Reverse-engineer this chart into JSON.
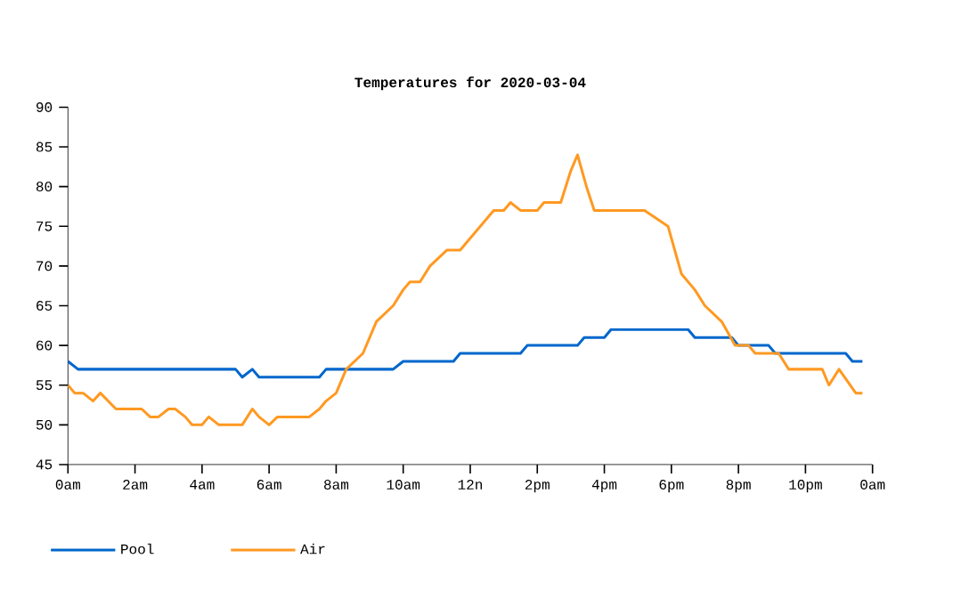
{
  "chart_data": {
    "type": "line",
    "title": "Temperatures for 2020-03-04",
    "xlim": [
      "2020-03-04T00:00",
      "2020-03-05T00:00"
    ],
    "ylim": [
      45,
      90
    ],
    "xticks": [
      {
        "value": "2020-03-04T00:00",
        "label": "0am"
      },
      {
        "value": "2020-03-04T02:00",
        "label": "2am"
      },
      {
        "value": "2020-03-04T04:00",
        "label": "4am"
      },
      {
        "value": "2020-03-04T06:00",
        "label": "6am"
      },
      {
        "value": "2020-03-04T08:00",
        "label": "8am"
      },
      {
        "value": "2020-03-04T10:00",
        "label": "10am"
      },
      {
        "value": "2020-03-04T12:00",
        "label": "12n"
      },
      {
        "value": "2020-03-04T14:00",
        "label": "2pm"
      },
      {
        "value": "2020-03-04T16:00",
        "label": "4pm"
      },
      {
        "value": "2020-03-04T18:00",
        "label": "6pm"
      },
      {
        "value": "2020-03-04T20:00",
        "label": "8pm"
      },
      {
        "value": "2020-03-04T22:00",
        "label": "10pm"
      },
      {
        "value": "2020-03-05T00:00",
        "label": "0am"
      }
    ],
    "yticks": [
      45,
      50,
      55,
      60,
      65,
      70,
      75,
      80,
      85,
      90
    ],
    "legend": "bottom left",
    "grid": false,
    "marker": "none",
    "line_style": "solid",
    "series": [
      {
        "name": "Pool",
        "color": "#0066cc",
        "x": [
          "2020-03-04T00:00",
          "2020-03-04T00:18",
          "2020-03-04T05:00",
          "2020-03-04T05:12",
          "2020-03-04T05:30",
          "2020-03-04T05:42",
          "2020-03-04T07:30",
          "2020-03-04T07:42",
          "2020-03-04T09:42",
          "2020-03-04T10:00",
          "2020-03-04T11:30",
          "2020-03-04T11:42",
          "2020-03-04T13:30",
          "2020-03-04T13:42",
          "2020-03-04T15:12",
          "2020-03-04T15:24",
          "2020-03-04T16:00",
          "2020-03-04T16:12",
          "2020-03-04T18:30",
          "2020-03-04T18:42",
          "2020-03-04T19:48",
          "2020-03-04T20:00",
          "2020-03-04T20:54",
          "2020-03-04T21:06",
          "2020-03-04T23:12",
          "2020-03-04T23:24",
          "2020-03-04T23:42"
        ],
        "values": [
          58,
          57,
          57,
          56,
          57,
          56,
          56,
          57,
          57,
          58,
          58,
          59,
          59,
          60,
          60,
          61,
          61,
          62,
          62,
          61,
          61,
          60,
          60,
          59,
          59,
          58,
          58
        ]
      },
      {
        "name": "Air",
        "color": "#ff9922",
        "x": [
          "2020-03-04T00:00",
          "2020-03-04T00:12",
          "2020-03-04T00:27",
          "2020-03-04T00:45",
          "2020-03-04T00:58",
          "2020-03-04T01:26",
          "2020-03-04T02:12",
          "2020-03-04T02:27",
          "2020-03-04T02:42",
          "2020-03-04T03:00",
          "2020-03-04T03:12",
          "2020-03-04T03:30",
          "2020-03-04T03:42",
          "2020-03-04T04:00",
          "2020-03-04T04:12",
          "2020-03-04T04:30",
          "2020-03-04T05:12",
          "2020-03-04T05:30",
          "2020-03-04T05:42",
          "2020-03-04T06:00",
          "2020-03-04T06:15",
          "2020-03-04T07:12",
          "2020-03-04T07:30",
          "2020-03-04T07:42",
          "2020-03-04T08:00",
          "2020-03-04T08:18",
          "2020-03-04T08:48",
          "2020-03-04T09:12",
          "2020-03-04T09:42",
          "2020-03-04T10:00",
          "2020-03-04T10:12",
          "2020-03-04T10:30",
          "2020-03-04T10:48",
          "2020-03-04T11:18",
          "2020-03-04T11:42",
          "2020-03-04T12:42",
          "2020-03-04T13:00",
          "2020-03-04T13:12",
          "2020-03-04T13:30",
          "2020-03-04T14:00",
          "2020-03-04T14:12",
          "2020-03-04T14:42",
          "2020-03-04T15:00",
          "2020-03-04T15:12",
          "2020-03-04T15:28",
          "2020-03-04T15:42",
          "2020-03-04T17:12",
          "2020-03-04T17:54",
          "2020-03-04T18:18",
          "2020-03-04T18:42",
          "2020-03-04T19:00",
          "2020-03-04T19:30",
          "2020-03-04T19:54",
          "2020-03-04T20:18",
          "2020-03-04T20:30",
          "2020-03-04T21:12",
          "2020-03-04T21:30",
          "2020-03-04T22:30",
          "2020-03-04T22:42",
          "2020-03-04T23:00",
          "2020-03-04T23:30",
          "2020-03-04T23:42"
        ],
        "values": [
          55,
          54,
          54,
          53,
          54,
          52,
          52,
          51,
          51,
          52,
          52,
          51,
          50,
          50,
          51,
          50,
          50,
          52,
          51,
          50,
          51,
          51,
          52,
          53,
          54,
          57,
          59,
          63,
          65,
          67,
          68,
          68,
          70,
          72,
          72,
          77,
          77,
          78,
          77,
          77,
          78,
          78,
          82,
          84,
          80,
          77,
          77,
          75,
          69,
          67,
          65,
          63,
          60,
          60,
          59,
          59,
          57,
          57,
          55,
          57,
          54,
          54
        ]
      }
    ]
  }
}
